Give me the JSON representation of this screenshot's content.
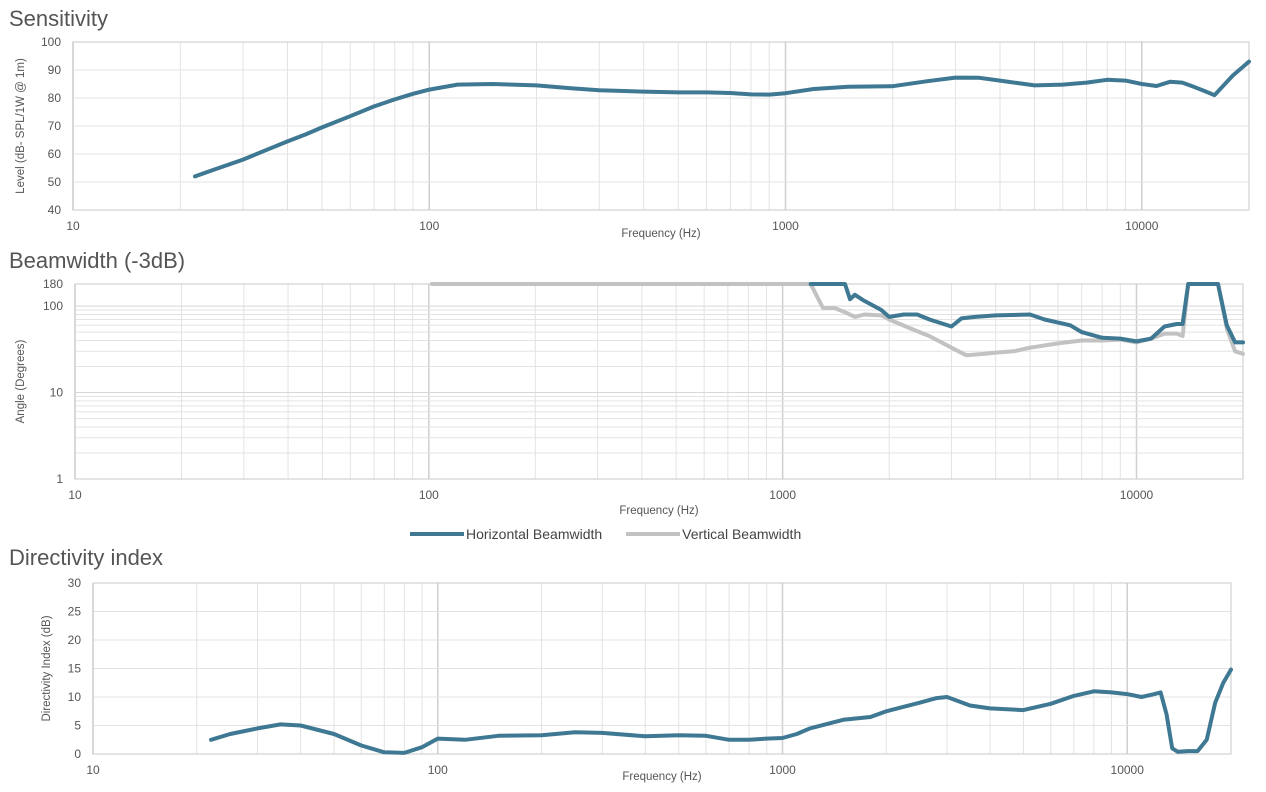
{
  "colors": {
    "horizontal": "#3f7893",
    "vertical": "#c2c2c2",
    "grid": "#e3e3e3",
    "frame": "#c8c8c8"
  },
  "legend": {
    "horizontal_label": "Horizontal Beamwidth",
    "vertical_label": "Vertical Beamwidth"
  },
  "chart_data": [
    {
      "type": "line",
      "title": "Sensitivity",
      "xlabel": "Frequency (Hz)",
      "ylabel": "Level (dB- SPL/1W @ 1m)",
      "xscale": "log",
      "xlim": [
        10,
        20000
      ],
      "ylim": [
        40,
        100
      ],
      "xticks": [
        10,
        100,
        1000,
        10000
      ],
      "xtick_labels": [
        "10",
        "100",
        "1000",
        "10000"
      ],
      "yticks": [
        40,
        50,
        60,
        70,
        80,
        90,
        100
      ],
      "ytick_labels": [
        "40",
        "50",
        "60",
        "70",
        "80",
        "90",
        "100"
      ],
      "grid": true,
      "series": [
        {
          "color": "#3f7893",
          "x": [
            22,
            25,
            30,
            35,
            40,
            45,
            50,
            60,
            70,
            80,
            90,
            100,
            120,
            150,
            200,
            250,
            300,
            400,
            500,
            600,
            700,
            800,
            900,
            1000,
            1200,
            1500,
            2000,
            2500,
            3000,
            3500,
            4000,
            5000,
            6000,
            7000,
            8000,
            9000,
            10000,
            11000,
            12000,
            13000,
            14000,
            15000,
            16000,
            18000,
            20000
          ],
          "y": [
            52,
            54.5,
            58,
            61.5,
            64.5,
            67,
            69.5,
            73.5,
            77,
            79.5,
            81.5,
            83,
            84.8,
            85,
            84.5,
            83.5,
            82.8,
            82.3,
            82,
            82,
            81.8,
            81.3,
            81.2,
            81.7,
            83.2,
            84,
            84.2,
            86,
            87.3,
            87.2,
            86.2,
            84.5,
            84.8,
            85.5,
            86.5,
            86.2,
            85,
            84.3,
            85.8,
            85.5,
            84,
            82.5,
            81,
            88,
            93
          ]
        }
      ]
    },
    {
      "type": "line",
      "title": "Beamwidth (-3dB)",
      "xlabel": "Frequency (Hz)",
      "ylabel": "Angle (Degrees)",
      "xscale": "log",
      "yscale": "log",
      "xlim": [
        10,
        20000
      ],
      "ylim": [
        1,
        180
      ],
      "xticks": [
        10,
        100,
        1000,
        10000
      ],
      "xtick_labels": [
        "10",
        "100",
        "1000",
        "10000"
      ],
      "yticks": [
        1,
        10,
        100,
        180
      ],
      "ytick_labels": [
        "1",
        "10",
        "100",
        "180"
      ],
      "grid": true,
      "legend": "bottom-center",
      "series": [
        {
          "name": "Horizontal Beamwidth",
          "color": "#3f7893",
          "x": [
            1200,
            1500,
            1550,
            1600,
            1700,
            1900,
            2000,
            2200,
            2400,
            2600,
            3000,
            3200,
            3500,
            4000,
            5000,
            5500,
            6500,
            7000,
            8000,
            9000,
            10000,
            11000,
            12000,
            13000,
            13500,
            14000,
            16000,
            17000,
            18000,
            19000,
            20000
          ],
          "y": [
            180,
            180,
            120,
            135,
            115,
            90,
            75,
            80,
            80,
            70,
            58,
            72,
            75,
            78,
            80,
            70,
            60,
            50,
            43,
            42,
            39,
            42,
            58,
            62,
            62,
            180,
            180,
            180,
            60,
            38,
            38
          ]
        },
        {
          "name": "Vertical Beamwidth",
          "color": "#c2c2c2",
          "x": [
            102,
            200,
            500,
            1000,
            1200,
            1250,
            1300,
            1400,
            1500,
            1600,
            1700,
            1900,
            2000,
            2300,
            2600,
            3000,
            3300,
            3700,
            4000,
            4500,
            5000,
            6000,
            7000,
            8000,
            9000,
            10000,
            11000,
            12000,
            13000,
            13500,
            14000,
            16000,
            17000,
            18000,
            19000,
            20000
          ],
          "y": [
            180,
            180,
            180,
            180,
            180,
            130,
            95,
            95,
            85,
            75,
            80,
            78,
            70,
            55,
            45,
            33,
            27,
            28,
            29,
            30,
            33,
            37,
            40,
            40,
            41,
            38,
            42,
            48,
            48,
            45,
            180,
            180,
            180,
            55,
            30,
            28
          ]
        }
      ]
    },
    {
      "type": "line",
      "title": "Directivity index",
      "xlabel": "Frequency (Hz)",
      "ylabel": "Directivity Index (dB)",
      "xscale": "log",
      "xlim": [
        10,
        20000
      ],
      "ylim": [
        0,
        30
      ],
      "xticks": [
        10,
        100,
        1000,
        10000
      ],
      "xtick_labels": [
        "10",
        "100",
        "1000",
        "10000"
      ],
      "yticks": [
        0,
        5,
        10,
        15,
        20,
        25,
        30
      ],
      "ytick_labels": [
        "0",
        "5",
        "10",
        "15",
        "20",
        "25",
        "30"
      ],
      "grid": true,
      "series": [
        {
          "color": "#3f7893",
          "x": [
            22,
            25,
            30,
            35,
            40,
            50,
            60,
            70,
            80,
            90,
            100,
            120,
            150,
            200,
            250,
            300,
            400,
            500,
            600,
            700,
            800,
            900,
            1000,
            1100,
            1200,
            1500,
            1800,
            2000,
            2500,
            2800,
            3000,
            3500,
            4000,
            5000,
            6000,
            7000,
            8000,
            9000,
            10000,
            11000,
            12000,
            12500,
            13000,
            13500,
            14000,
            15000,
            16000,
            17000,
            18000,
            19000,
            20000
          ],
          "y": [
            2.5,
            3.5,
            4.5,
            5.2,
            5,
            3.5,
            1.5,
            0.3,
            0.2,
            1.2,
            2.7,
            2.5,
            3.2,
            3.3,
            3.8,
            3.7,
            3.1,
            3.3,
            3.2,
            2.5,
            2.5,
            2.7,
            2.8,
            3.5,
            4.5,
            6,
            6.5,
            7.5,
            9,
            9.8,
            10,
            8.5,
            8,
            7.7,
            8.8,
            10.2,
            11,
            10.8,
            10.5,
            10,
            10.5,
            10.8,
            7,
            1,
            0.4,
            0.5,
            0.5,
            2.5,
            9,
            12.5,
            14.8
          ]
        }
      ]
    }
  ]
}
